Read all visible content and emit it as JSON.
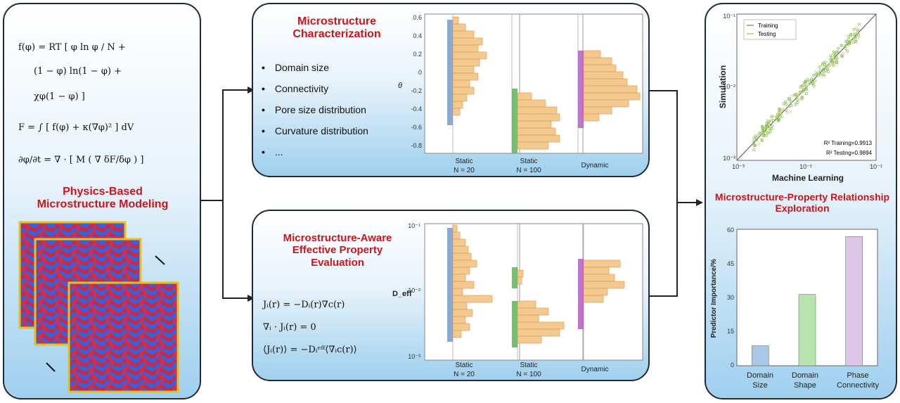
{
  "left_panel": {
    "equations": [
      "f(φ) = RT [ φ ln φ / N +",
      "(1 − φ) ln(1 − φ) +",
      "χφ(1 − φ) ]",
      "F = ∫ [ f(φ) + κ(∇φ)² ] dV",
      "∂φ/∂t = ∇ · [ M ( ∇ δF/δφ ) ]"
    ],
    "title": "Physics-Based Microstructure Modeling"
  },
  "char_panel": {
    "title": "Microstructure Characterization",
    "bullets": [
      "Domain size",
      "Connectivity",
      "Pore size distribution",
      "Curvature distribution",
      "..."
    ],
    "y_label": "θ",
    "y_ticks": [
      "0.6",
      "0.4",
      "0.2",
      "0",
      "-0.2",
      "-0.4",
      "-0.6",
      "-0.8"
    ],
    "groups": [
      {
        "line1": "Static",
        "line2": "N = 20"
      },
      {
        "line1": "Static",
        "line2": "N = 100"
      },
      {
        "line1": "Dynamic",
        "line2": ""
      }
    ]
  },
  "prop_panel": {
    "title": "Microstructure-Aware Effective Property Evaluation",
    "equations": [
      "Jᵢ(r) = −Dᵢ(r)∇c(r)",
      "∇ᵢ · Jᵢ(r) = 0",
      "⟨Jᵢ(r)⟩ = −Dᵢᵉᶠᶠ⟨∇ᵢc(r)⟩"
    ],
    "y_label": "D_eff",
    "y_ticks": [
      "10⁻¹",
      "10⁻²",
      "10⁻³"
    ],
    "groups": [
      {
        "line1": "Static",
        "line2": "N = 20"
      },
      {
        "line1": "Static",
        "line2": "N = 100"
      },
      {
        "line1": "Dynamic",
        "line2": ""
      }
    ]
  },
  "right_panel": {
    "scatter": {
      "y_label": "Simulation",
      "x_label": "Machine Learning",
      "legend": [
        "Training",
        "Testing"
      ],
      "metrics": [
        "R² Training=0.9913",
        "R² Testing=0.9894"
      ],
      "x_ticks": [
        "10⁻³",
        "10⁻²",
        "10⁻¹"
      ],
      "y_ticks": [
        "10⁻¹",
        "10⁻²",
        "10⁻³"
      ]
    },
    "title": "Microstructure-Property Relationship Exploration",
    "bar_chart": {
      "y_label": "Predictor Importance/%",
      "y_ticks": [
        "60",
        "45",
        "30",
        "15",
        "0"
      ],
      "categories": [
        "Domain Size",
        "Domain Shape",
        "Phase Connectivity"
      ],
      "values": [
        9,
        32,
        58
      ],
      "colors": [
        "#aac7e6",
        "#b9e3ae",
        "#dcc6e8"
      ]
    }
  },
  "chart_data": [
    {
      "type": "bar",
      "title": "",
      "ylabel": "Predictor Importance/%",
      "categories": [
        "Domain Size",
        "Domain Shape",
        "Phase Connectivity"
      ],
      "values": [
        9,
        32,
        58
      ],
      "ylim": [
        0,
        60
      ]
    },
    {
      "type": "scatter",
      "xlabel": "Machine Learning",
      "ylabel": "Simulation",
      "xscale": "log",
      "yscale": "log",
      "xlim": [
        0.001,
        0.1
      ],
      "ylim": [
        0.001,
        0.1
      ],
      "series": [
        {
          "name": "Training"
        },
        {
          "name": "Testing"
        }
      ]
    }
  ]
}
